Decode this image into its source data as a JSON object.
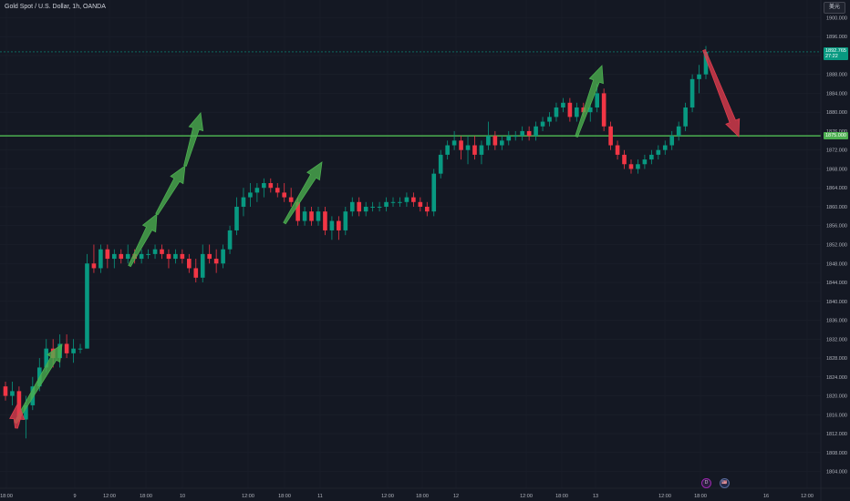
{
  "header": {
    "symbol_title": "Gold Spot / U.S. Dollar, 1h, OANDA",
    "currency_button": "美元"
  },
  "price_scale": {
    "labels": [
      "1900.000",
      "1896.000",
      "1892.000",
      "1888.000",
      "1884.000",
      "1880.000",
      "1876.000",
      "1872.000",
      "1868.000",
      "1864.000",
      "1860.000",
      "1856.000",
      "1852.000",
      "1848.000",
      "1844.000",
      "1840.000",
      "1836.000",
      "1832.000",
      "1828.000",
      "1824.000",
      "1820.000",
      "1816.000",
      "1812.000",
      "1808.000",
      "1804.000"
    ]
  },
  "time_scale": {
    "labels": [
      "18:00",
      "9",
      "12:00",
      "18:00",
      "10",
      "12:00",
      "18:00",
      "11",
      "12:00",
      "18:00",
      "12",
      "12:00",
      "18:00",
      "13",
      "12:00",
      "18:00",
      "16",
      "12:00"
    ]
  },
  "current_price": {
    "value": "1892.765",
    "countdown": "27:22",
    "color": "#089981"
  },
  "horizontal_line": {
    "label": "1875.000",
    "value": 1875.0,
    "color": "#4caf50"
  },
  "events": {
    "dividend_icon": "D",
    "flag_icon": "🇺🇸"
  },
  "colors": {
    "background": "#141823",
    "up": "#089981",
    "down": "#f23645",
    "up_arrow": "#4caf50",
    "down_arrow": "#e03c4e"
  },
  "chart_data": {
    "type": "candlestick",
    "instrument": "XAUUSD",
    "timeframe": "1h",
    "ylim": [
      1802,
      1902
    ],
    "candles": [
      [
        1822,
        1823,
        1819,
        1820
      ],
      [
        1820,
        1823,
        1818,
        1821
      ],
      [
        1821,
        1822,
        1814,
        1815
      ],
      [
        1815,
        1820,
        1811,
        1818
      ],
      [
        1818,
        1824,
        1817,
        1822
      ],
      [
        1822,
        1828,
        1821,
        1826
      ],
      [
        1826,
        1832,
        1825,
        1830
      ],
      [
        1830,
        1832,
        1826,
        1828
      ],
      [
        1828,
        1833,
        1826,
        1831
      ],
      [
        1831,
        1833,
        1828,
        1829
      ],
      [
        1829,
        1832,
        1827,
        1830
      ],
      [
        1830,
        1831,
        1829,
        1830
      ],
      [
        1830,
        1850,
        1830,
        1848
      ],
      [
        1848,
        1852,
        1846,
        1847
      ],
      [
        1847,
        1852,
        1846,
        1851
      ],
      [
        1851,
        1852,
        1847,
        1849
      ],
      [
        1849,
        1851,
        1847,
        1850
      ],
      [
        1850,
        1851,
        1848,
        1849
      ],
      [
        1849,
        1852,
        1848,
        1850
      ],
      [
        1850,
        1851,
        1848,
        1849
      ],
      [
        1849,
        1851,
        1848,
        1850
      ],
      [
        1850,
        1851,
        1849,
        1850
      ],
      [
        1850,
        1852,
        1849,
        1851
      ],
      [
        1851,
        1852,
        1849,
        1850
      ],
      [
        1850,
        1851,
        1847,
        1849
      ],
      [
        1849,
        1851,
        1848,
        1850
      ],
      [
        1850,
        1851,
        1848,
        1849
      ],
      [
        1849,
        1850,
        1846,
        1847
      ],
      [
        1847,
        1849,
        1844,
        1845
      ],
      [
        1845,
        1852,
        1844,
        1850
      ],
      [
        1850,
        1852,
        1848,
        1849
      ],
      [
        1849,
        1851,
        1846,
        1848
      ],
      [
        1848,
        1852,
        1847,
        1851
      ],
      [
        1851,
        1856,
        1850,
        1855
      ],
      [
        1855,
        1862,
        1854,
        1860
      ],
      [
        1860,
        1864,
        1858,
        1862
      ],
      [
        1862,
        1865,
        1860,
        1863
      ],
      [
        1863,
        1865,
        1861,
        1864
      ],
      [
        1864,
        1866,
        1862,
        1865
      ],
      [
        1865,
        1866,
        1863,
        1864
      ],
      [
        1864,
        1865,
        1862,
        1863
      ],
      [
        1863,
        1865,
        1861,
        1862
      ],
      [
        1862,
        1864,
        1860,
        1861
      ],
      [
        1861,
        1862,
        1856,
        1857
      ],
      [
        1857,
        1860,
        1856,
        1859
      ],
      [
        1859,
        1860,
        1856,
        1857
      ],
      [
        1857,
        1860,
        1856,
        1859
      ],
      [
        1859,
        1860,
        1854,
        1855
      ],
      [
        1855,
        1858,
        1853,
        1857
      ],
      [
        1857,
        1858,
        1853,
        1855
      ],
      [
        1855,
        1860,
        1854,
        1859
      ],
      [
        1859,
        1862,
        1858,
        1861
      ],
      [
        1861,
        1862,
        1858,
        1859
      ],
      [
        1859,
        1861,
        1858,
        1860
      ],
      [
        1860,
        1861,
        1859,
        1860
      ],
      [
        1860,
        1861,
        1859,
        1860
      ],
      [
        1860,
        1862,
        1859,
        1861
      ],
      [
        1861,
        1862,
        1860,
        1861
      ],
      [
        1861,
        1862,
        1860,
        1861
      ],
      [
        1861,
        1863,
        1860,
        1862
      ],
      [
        1862,
        1863,
        1860,
        1861
      ],
      [
        1861,
        1862,
        1859,
        1860
      ],
      [
        1860,
        1861,
        1858,
        1859
      ],
      [
        1859,
        1868,
        1858,
        1867
      ],
      [
        1867,
        1872,
        1866,
        1871
      ],
      [
        1871,
        1874,
        1870,
        1873
      ],
      [
        1873,
        1876,
        1872,
        1874
      ],
      [
        1874,
        1875,
        1870,
        1872
      ],
      [
        1872,
        1875,
        1869,
        1873
      ],
      [
        1873,
        1875,
        1870,
        1871
      ],
      [
        1871,
        1874,
        1869,
        1873
      ],
      [
        1873,
        1878,
        1872,
        1875
      ],
      [
        1875,
        1876,
        1872,
        1873
      ],
      [
        1873,
        1875,
        1872,
        1874
      ],
      [
        1874,
        1876,
        1873,
        1875
      ],
      [
        1875,
        1876,
        1874,
        1875
      ],
      [
        1875,
        1877,
        1874,
        1876
      ],
      [
        1876,
        1877,
        1874,
        1875
      ],
      [
        1875,
        1878,
        1874,
        1877
      ],
      [
        1877,
        1879,
        1876,
        1878
      ],
      [
        1878,
        1880,
        1877,
        1879
      ],
      [
        1879,
        1882,
        1878,
        1881
      ],
      [
        1881,
        1883,
        1880,
        1882
      ],
      [
        1882,
        1883,
        1878,
        1879
      ],
      [
        1879,
        1882,
        1878,
        1881
      ],
      [
        1881,
        1882,
        1879,
        1880
      ],
      [
        1880,
        1882,
        1878,
        1881
      ],
      [
        1881,
        1886,
        1880,
        1884
      ],
      [
        1884,
        1885,
        1876,
        1877
      ],
      [
        1877,
        1878,
        1872,
        1873
      ],
      [
        1873,
        1874,
        1870,
        1871
      ],
      [
        1871,
        1872,
        1868,
        1869
      ],
      [
        1869,
        1870,
        1867,
        1868
      ],
      [
        1868,
        1870,
        1867,
        1869
      ],
      [
        1869,
        1871,
        1868,
        1870
      ],
      [
        1870,
        1872,
        1869,
        1871
      ],
      [
        1871,
        1873,
        1870,
        1872
      ],
      [
        1872,
        1874,
        1871,
        1873
      ],
      [
        1873,
        1876,
        1872,
        1875
      ],
      [
        1875,
        1878,
        1874,
        1877
      ],
      [
        1877,
        1882,
        1876,
        1881
      ],
      [
        1881,
        1888,
        1880,
        1887
      ],
      [
        1887,
        1890,
        1884,
        1888
      ],
      [
        1888,
        1894,
        1887,
        1892.765
      ]
    ]
  }
}
